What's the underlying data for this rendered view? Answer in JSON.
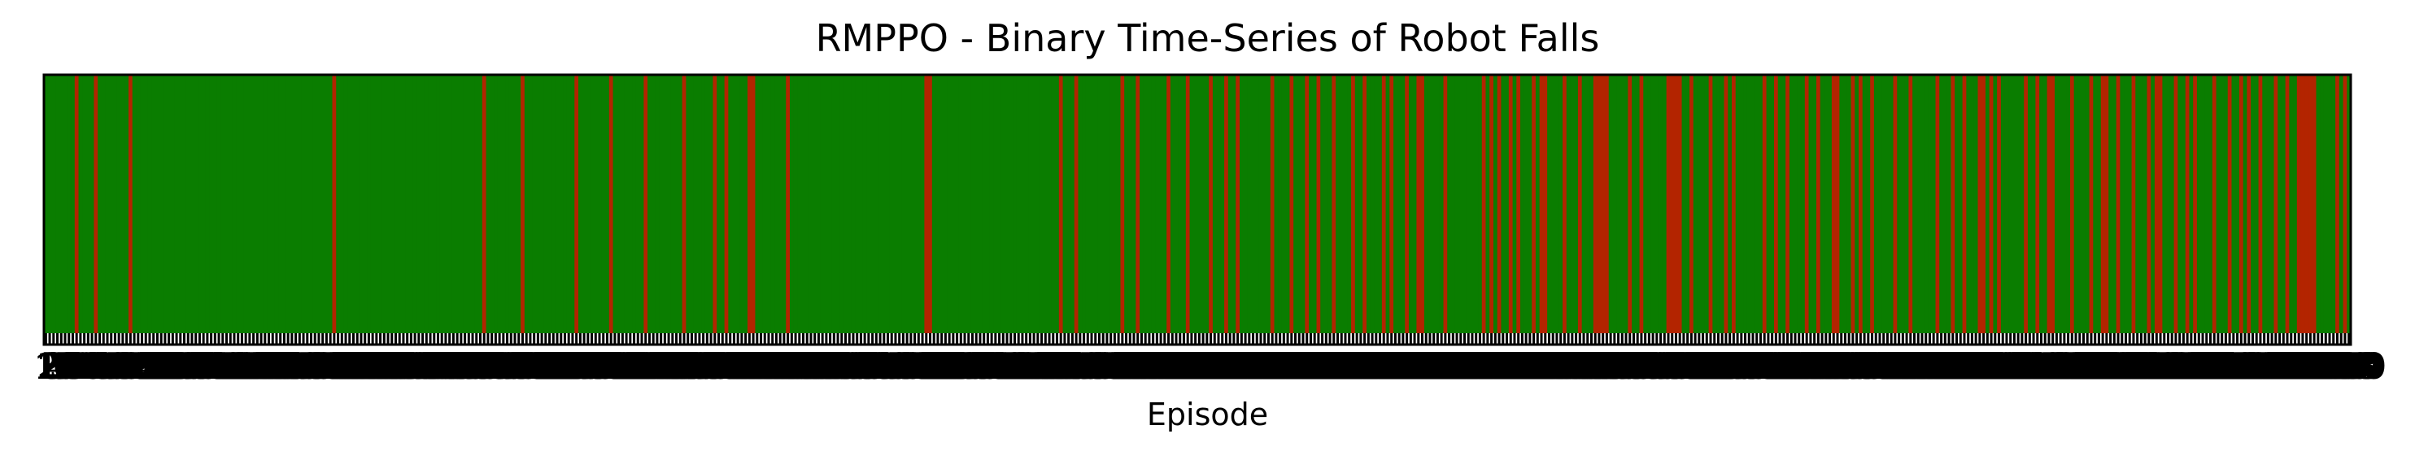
{
  "chart_data": {
    "type": "heatmap",
    "title": "RMPPO - Binary Time-Series of Robot Falls",
    "xlabel": "Episode",
    "ylabel": "",
    "n_episodes": 600,
    "fall_value": 1,
    "no_fall_value": 0,
    "colors": {
      "fall": "#b32400",
      "no_fall": "#0a7d00",
      "tick_label": "#000000",
      "frame": "#000000"
    },
    "tick_labels_overlapping": true,
    "grid": false,
    "legend": "none",
    "values": [
      0,
      0,
      0,
      0,
      0,
      0,
      0,
      0,
      1,
      0,
      0,
      0,
      0,
      1,
      0,
      0,
      0,
      0,
      0,
      0,
      0,
      0,
      1,
      0,
      0,
      0,
      0,
      0,
      0,
      0,
      0,
      0,
      0,
      0,
      0,
      0,
      0,
      0,
      0,
      0,
      0,
      0,
      0,
      0,
      0,
      0,
      0,
      0,
      0,
      0,
      0,
      0,
      0,
      0,
      0,
      0,
      0,
      0,
      0,
      0,
      0,
      0,
      0,
      0,
      0,
      0,
      0,
      0,
      0,
      0,
      0,
      0,
      0,
      0,
      0,
      1,
      0,
      0,
      0,
      0,
      0,
      0,
      0,
      0,
      0,
      0,
      0,
      0,
      0,
      0,
      0,
      0,
      0,
      0,
      0,
      0,
      0,
      0,
      0,
      0,
      0,
      0,
      0,
      0,
      0,
      0,
      0,
      0,
      0,
      0,
      0,
      0,
      0,
      0,
      1,
      0,
      0,
      0,
      0,
      0,
      0,
      0,
      0,
      0,
      1,
      0,
      0,
      0,
      0,
      0,
      0,
      0,
      0,
      0,
      0,
      0,
      0,
      0,
      1,
      0,
      0,
      0,
      0,
      0,
      0,
      0,
      0,
      1,
      0,
      0,
      0,
      0,
      0,
      0,
      0,
      0,
      1,
      0,
      0,
      0,
      0,
      0,
      0,
      0,
      0,
      0,
      1,
      0,
      0,
      0,
      0,
      0,
      0,
      0,
      1,
      0,
      0,
      1,
      0,
      0,
      0,
      0,
      0,
      1,
      1,
      0,
      0,
      0,
      0,
      0,
      0,
      0,
      0,
      1,
      0,
      0,
      0,
      0,
      0,
      0,
      0,
      0,
      0,
      0,
      0,
      0,
      0,
      0,
      0,
      0,
      0,
      0,
      0,
      0,
      0,
      0,
      0,
      0,
      0,
      0,
      0,
      0,
      0,
      0,
      0,
      0,
      0,
      0,
      0,
      1,
      1,
      0,
      0,
      0,
      0,
      0,
      0,
      0,
      0,
      0,
      0,
      0,
      0,
      0,
      0,
      0,
      0,
      0,
      0,
      0,
      0,
      0,
      0,
      0,
      0,
      0,
      0,
      0,
      0,
      0,
      0,
      0,
      0,
      0,
      1,
      0,
      0,
      0,
      1,
      0,
      0,
      0,
      0,
      0,
      0,
      0,
      0,
      0,
      0,
      0,
      1,
      0,
      0,
      0,
      1,
      0,
      0,
      0,
      0,
      0,
      0,
      0,
      1,
      0,
      0,
      0,
      0,
      1,
      0,
      0,
      0,
      0,
      0,
      1,
      0,
      0,
      0,
      1,
      0,
      0,
      1,
      0,
      0,
      0,
      0,
      0,
      0,
      0,
      0,
      1,
      0,
      0,
      0,
      0,
      1,
      0,
      0,
      0,
      1,
      0,
      0,
      1,
      0,
      0,
      0,
      1,
      0,
      0,
      0,
      0,
      1,
      0,
      0,
      1,
      0,
      0,
      0,
      0,
      1,
      0,
      1,
      0,
      0,
      0,
      1,
      0,
      0,
      1,
      1,
      0,
      0,
      0,
      0,
      0,
      1,
      0,
      0,
      0,
      0,
      0,
      0,
      0,
      0,
      0,
      1,
      0,
      1,
      0,
      1,
      0,
      0,
      1,
      0,
      1,
      0,
      0,
      0,
      1,
      0,
      1,
      1,
      0,
      0,
      0,
      0,
      1,
      0,
      0,
      0,
      1,
      0,
      0,
      0,
      1,
      1,
      1,
      1,
      0,
      0,
      0,
      0,
      0,
      1,
      0,
      0,
      1,
      0,
      0,
      0,
      0,
      0,
      0,
      1,
      1,
      1,
      1,
      0,
      0,
      1,
      0,
      0,
      0,
      0,
      1,
      0,
      0,
      0,
      1,
      0,
      1,
      0,
      0,
      0,
      0,
      0,
      0,
      0,
      1,
      0,
      0,
      1,
      0,
      0,
      1,
      0,
      0,
      0,
      0,
      1,
      0,
      0,
      1,
      0,
      0,
      0,
      1,
      1,
      0,
      0,
      0,
      1,
      0,
      1,
      0,
      0,
      1,
      0,
      0,
      0,
      0,
      0,
      1,
      0,
      0,
      0,
      1,
      0,
      0,
      0,
      0,
      0,
      0,
      1,
      0,
      0,
      0,
      1,
      0,
      0,
      1,
      0,
      0,
      0,
      1,
      1,
      0,
      1,
      0,
      1,
      0,
      0,
      0,
      0,
      0,
      0,
      1,
      0,
      0,
      1,
      0,
      0,
      1,
      1,
      0,
      0,
      0,
      0,
      1,
      0,
      0,
      0,
      0,
      1,
      0,
      0,
      1,
      1,
      0,
      0,
      1,
      0,
      0,
      0,
      1,
      0,
      0,
      0,
      1,
      0,
      1,
      1,
      0,
      0,
      0,
      1,
      0,
      0,
      1,
      0,
      1,
      0,
      0,
      0,
      0,
      1,
      0,
      0,
      0,
      1,
      0,
      0,
      1,
      0,
      1,
      0,
      0,
      1,
      0,
      0,
      0,
      1,
      0,
      0,
      1,
      0,
      0,
      1,
      1,
      1,
      1,
      1,
      0,
      0,
      0,
      0,
      0,
      1,
      0,
      1,
      0
    ],
    "x_tick_labels": [
      "1",
      "2",
      "3",
      "4",
      "5",
      "6",
      "7",
      "8",
      "9",
      "10",
      "11",
      "12",
      "13",
      "14",
      "15",
      "16",
      "17",
      "18",
      "19",
      "20",
      "21",
      "22",
      "23",
      "24",
      "25",
      "26",
      "27",
      "28",
      "29",
      "30",
      "31",
      "32",
      "33",
      "34",
      "35",
      "36",
      "37",
      "38",
      "39",
      "40",
      "41",
      "42",
      "43",
      "44",
      "45",
      "46",
      "47",
      "48",
      "49",
      "50",
      "51",
      "52",
      "53",
      "54",
      "55",
      "56",
      "57",
      "58",
      "59",
      "60",
      "61",
      "62",
      "63",
      "64",
      "65",
      "66",
      "67",
      "68",
      "69",
      "70",
      "71",
      "72",
      "73",
      "74",
      "75",
      "76",
      "77",
      "78",
      "79",
      "80",
      "81",
      "82",
      "83",
      "84",
      "85",
      "86",
      "87",
      "88",
      "89",
      "90",
      "91",
      "92",
      "93",
      "94",
      "95",
      "96",
      "97",
      "98",
      "99",
      "100",
      "101",
      "102",
      "103",
      "104",
      "105",
      "106",
      "107",
      "108",
      "109",
      "110",
      "111",
      "112",
      "113",
      "114",
      "115",
      "116",
      "117",
      "118",
      "119",
      "120",
      "121",
      "122",
      "123",
      "124",
      "125",
      "126",
      "127",
      "128",
      "129",
      "130",
      "131",
      "132",
      "133",
      "134",
      "135",
      "136",
      "137",
      "138",
      "139",
      "140",
      "141",
      "142",
      "143",
      "144",
      "145",
      "146",
      "147",
      "148",
      "149",
      "150",
      "151",
      "152",
      "153",
      "154",
      "155",
      "156",
      "157",
      "158",
      "159",
      "160",
      "161",
      "162",
      "163",
      "164",
      "165",
      "166",
      "167",
      "168",
      "169",
      "170",
      "171",
      "172",
      "173",
      "174",
      "175",
      "176",
      "177",
      "178",
      "179",
      "180",
      "181",
      "182",
      "183",
      "184",
      "185",
      "186",
      "187",
      "188",
      "189",
      "190",
      "191",
      "192",
      "193",
      "194",
      "195",
      "196",
      "197",
      "198",
      "199",
      "200",
      "201",
      "202",
      "203",
      "204",
      "205",
      "206",
      "207",
      "208",
      "209",
      "210",
      "211",
      "212",
      "213",
      "214",
      "215",
      "216",
      "217",
      "218",
      "219",
      "220",
      "221",
      "222",
      "223",
      "224",
      "225",
      "226",
      "227",
      "228",
      "229",
      "230",
      "231",
      "232",
      "233",
      "234",
      "235",
      "236",
      "237",
      "238",
      "239",
      "240",
      "241",
      "242",
      "243",
      "244",
      "245",
      "246",
      "247",
      "248",
      "249",
      "250",
      "251",
      "252",
      "253",
      "254",
      "255",
      "256",
      "257",
      "258",
      "259",
      "260",
      "261",
      "262",
      "263",
      "264",
      "265",
      "266",
      "267",
      "268",
      "269",
      "270",
      "271",
      "272",
      "273",
      "274",
      "275",
      "276",
      "277",
      "278",
      "279",
      "280",
      "281",
      "282",
      "283",
      "284",
      "285",
      "286",
      "287",
      "288",
      "289",
      "290",
      "291",
      "292",
      "293",
      "294",
      "295",
      "296",
      "297",
      "298",
      "299",
      "300",
      "301",
      "302",
      "303",
      "304",
      "305",
      "306",
      "307",
      "308",
      "309",
      "310",
      "311",
      "312",
      "313",
      "314",
      "315",
      "316",
      "317",
      "318",
      "319",
      "320",
      "321",
      "322",
      "323",
      "324",
      "325",
      "326",
      "327",
      "328",
      "329",
      "330",
      "331",
      "332",
      "333",
      "334",
      "335",
      "336",
      "337",
      "338",
      "339",
      "340",
      "341",
      "342",
      "343",
      "344",
      "345",
      "346",
      "347",
      "348",
      "349",
      "350",
      "351",
      "352",
      "353",
      "354",
      "355",
      "356",
      "357",
      "358",
      "359",
      "360",
      "361",
      "362",
      "363",
      "364",
      "365",
      "366",
      "367",
      "368",
      "369",
      "370",
      "371",
      "372",
      "373",
      "374",
      "375",
      "376",
      "377",
      "378",
      "379",
      "380",
      "381",
      "382",
      "383",
      "384",
      "385",
      "386",
      "387",
      "388",
      "389",
      "390",
      "391",
      "392",
      "393",
      "394",
      "395",
      "396",
      "397",
      "398",
      "399",
      "400",
      "401",
      "402",
      "403",
      "404",
      "405",
      "406",
      "407",
      "408",
      "409",
      "410",
      "411",
      "412",
      "413",
      "414",
      "415",
      "416",
      "417",
      "418",
      "419",
      "420",
      "421",
      "422",
      "423",
      "424",
      "425",
      "426",
      "427",
      "428",
      "429",
      "430",
      "431",
      "432",
      "433",
      "434",
      "435",
      "436",
      "437",
      "438",
      "439",
      "440",
      "441",
      "442",
      "443",
      "444",
      "445",
      "446",
      "447",
      "448",
      "449",
      "450",
      "451",
      "452",
      "453",
      "454",
      "455",
      "456",
      "457",
      "458",
      "459",
      "460",
      "461",
      "462",
      "463",
      "464",
      "465",
      "466",
      "467",
      "468",
      "469",
      "470",
      "471",
      "472",
      "473",
      "474",
      "475",
      "476",
      "477",
      "478",
      "479",
      "480",
      "481",
      "482",
      "483",
      "484",
      "485",
      "486",
      "487",
      "488",
      "489",
      "490",
      "491",
      "492",
      "493",
      "494",
      "495",
      "496",
      "497",
      "498",
      "499",
      "500",
      "501",
      "502",
      "503",
      "504",
      "505",
      "506",
      "507",
      "508",
      "509",
      "510",
      "511",
      "512",
      "513",
      "514",
      "515",
      "516",
      "517",
      "518",
      "519",
      "520",
      "521",
      "522",
      "523",
      "524",
      "525",
      "526",
      "527",
      "528",
      "529",
      "530",
      "531",
      "532",
      "533",
      "534",
      "535",
      "536",
      "537",
      "538",
      "539",
      "540",
      "541",
      "542",
      "543",
      "544",
      "545",
      "546",
      "547",
      "548",
      "549",
      "550",
      "551",
      "552",
      "553",
      "554",
      "555",
      "556",
      "557",
      "558",
      "559",
      "560",
      "561",
      "562",
      "563",
      "564",
      "565",
      "566",
      "567",
      "568",
      "569",
      "570",
      "571",
      "572",
      "573",
      "574",
      "575",
      "576",
      "577",
      "578",
      "579",
      "580",
      "581",
      "582",
      "583",
      "584",
      "585",
      "586",
      "587",
      "588",
      "589",
      "590",
      "591",
      "592",
      "593",
      "594",
      "595",
      "596",
      "597",
      "598",
      "599",
      "600"
    ]
  }
}
